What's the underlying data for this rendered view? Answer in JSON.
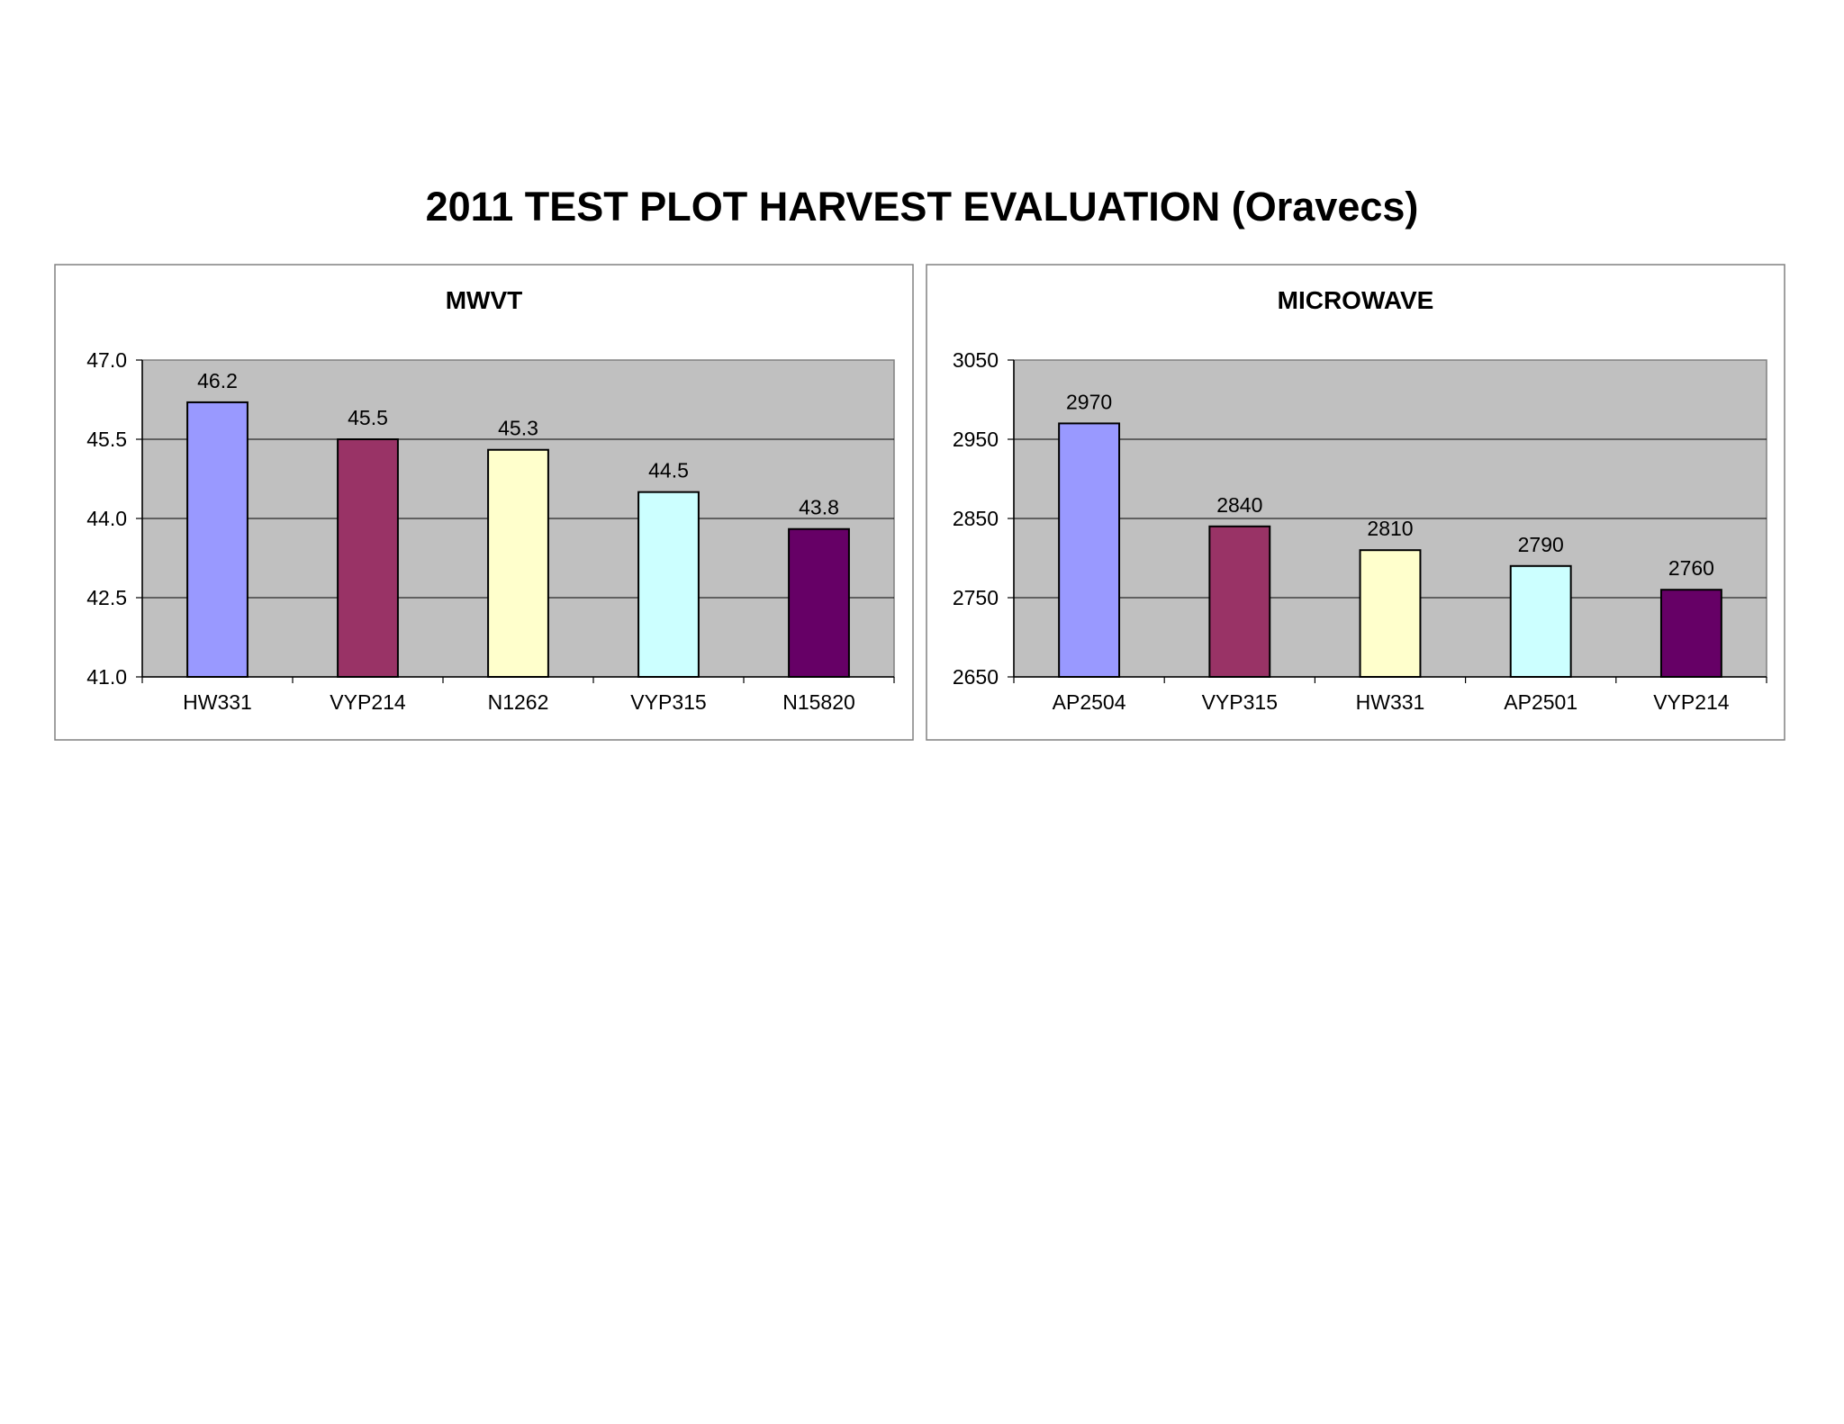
{
  "page": {
    "title": "2011 TEST PLOT HARVEST EVALUATION (Oravecs)"
  },
  "chart_data": [
    {
      "type": "bar",
      "title": "MWVT",
      "xlabel": "",
      "ylabel": "",
      "categories": [
        "HW331",
        "VYP214",
        "N1262",
        "VYP315",
        "N15820"
      ],
      "values": [
        46.2,
        45.5,
        45.3,
        44.5,
        43.8
      ],
      "data_labels": [
        "46.2",
        "45.5",
        "45.3",
        "44.5",
        "43.8"
      ],
      "ylim": [
        41.0,
        47.0
      ],
      "yticks": [
        41.0,
        42.5,
        44.0,
        45.5,
        47.0
      ],
      "ytick_labels": [
        "41.0",
        "42.5",
        "44.0",
        "45.5",
        "47.0"
      ],
      "grid": true,
      "legend": "none",
      "plot_background": "#c0c0c0",
      "bar_colors": [
        "#9999ff",
        "#993366",
        "#ffffcc",
        "#ccffff",
        "#660066"
      ]
    },
    {
      "type": "bar",
      "title": "MICROWAVE",
      "xlabel": "",
      "ylabel": "",
      "categories": [
        "AP2504",
        "VYP315",
        "HW331",
        "AP2501",
        "VYP214"
      ],
      "values": [
        2970,
        2840,
        2810,
        2790,
        2760
      ],
      "data_labels": [
        "2970",
        "2840",
        "2810",
        "2790",
        "2760"
      ],
      "ylim": [
        2650,
        3050
      ],
      "yticks": [
        2650,
        2750,
        2850,
        2950,
        3050
      ],
      "ytick_labels": [
        "2650",
        "2750",
        "2850",
        "2950",
        "3050"
      ],
      "grid": true,
      "legend": "none",
      "plot_background": "#c0c0c0",
      "bar_colors": [
        "#9999ff",
        "#993366",
        "#ffffcc",
        "#ccffff",
        "#660066"
      ]
    }
  ]
}
